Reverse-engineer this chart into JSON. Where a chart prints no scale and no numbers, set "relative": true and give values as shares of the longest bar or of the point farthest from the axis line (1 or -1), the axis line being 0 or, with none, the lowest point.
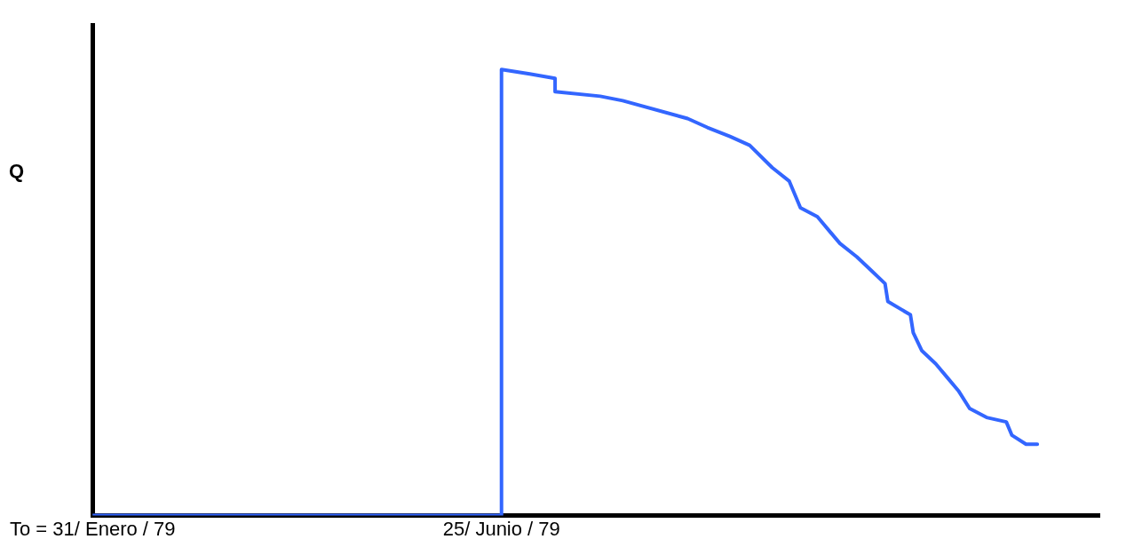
{
  "chart_data": {
    "type": "line",
    "ylabel": "Q",
    "relative": true,
    "x": [
      "1979-01-31",
      "1979-06-25",
      "1979-06-25",
      "1979-07-05",
      "1979-07-14",
      "1979-07-14",
      "1979-07-30",
      "1979-08-07",
      "1979-08-30",
      "1979-09-06",
      "1979-09-14",
      "1979-09-21",
      "1979-09-29",
      "1979-10-05",
      "1979-10-09",
      "1979-10-15",
      "1979-10-19",
      "1979-10-23",
      "1979-10-29",
      "1979-11-03",
      "1979-11-08",
      "1979-11-09",
      "1979-11-17",
      "1979-11-18",
      "1979-11-21",
      "1979-11-26",
      "1979-11-30",
      "1979-12-04",
      "1979-12-08",
      "1979-12-14",
      "1979-12-21",
      "1979-12-23",
      "1979-12-28",
      "1980-01-01"
    ],
    "series": [
      {
        "color": "#3366ff",
        "values": [
          0,
          0,
          1,
          0.99,
          0.98,
          0.95,
          0.94,
          0.93,
          0.89,
          0.87,
          0.85,
          0.83,
          0.78,
          0.75,
          0.69,
          0.67,
          0.64,
          0.61,
          0.58,
          0.55,
          0.52,
          0.48,
          0.45,
          0.41,
          0.37,
          0.34,
          0.31,
          0.28,
          0.24,
          0.22,
          0.21,
          0.18,
          0.16,
          0.16
        ]
      }
    ],
    "xlim": [
      "1979-01-31",
      "1980-01-23"
    ],
    "xticks": [
      {
        "value": "1979-01-31",
        "label": "To = 31/ Enero / 79"
      },
      {
        "value": "1979-06-25",
        "label": "25/ Junio / 79"
      }
    ],
    "grid": false,
    "legend": false,
    "marker": "none",
    "line_style": "solid"
  }
}
